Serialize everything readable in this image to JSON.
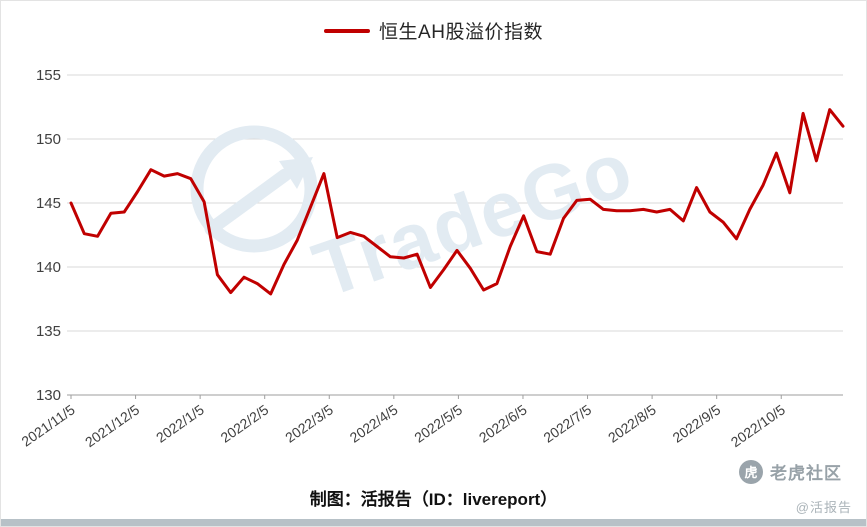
{
  "legend": {
    "label": "恒生AH股溢价指数",
    "color": "#c00000"
  },
  "caption": "制图：活报告（ID：livereport）",
  "watermark": {
    "text": "TradeGo"
  },
  "footer_badge": {
    "icon_char": "虎",
    "community": "老虎社区",
    "handle": "@活报告"
  },
  "chart_data": {
    "type": "line",
    "title": "恒生AH股溢价指数",
    "xlabel": "",
    "ylabel": "",
    "ylim": [
      130,
      155
    ],
    "y_ticks": [
      130,
      135,
      140,
      145,
      150,
      155
    ],
    "grid": "horizontal",
    "legend_position": "top-center",
    "x_tick_labels": [
      "2021/11/5",
      "2021/12/5",
      "2022/1/5",
      "2022/2/5",
      "2022/3/5",
      "2022/4/5",
      "2022/5/5",
      "2022/6/5",
      "2022/7/5",
      "2022/8/5",
      "2022/9/5",
      "2022/10/5"
    ],
    "x_tick_span_fraction": 0.92,
    "series": [
      {
        "name": "恒生AH股溢价指数",
        "color": "#c00000",
        "values": [
          145.0,
          142.6,
          142.4,
          144.2,
          144.3,
          145.9,
          147.6,
          147.1,
          147.3,
          146.9,
          145.1,
          139.4,
          138.0,
          139.2,
          138.7,
          137.9,
          140.2,
          142.1,
          144.7,
          147.3,
          142.3,
          142.7,
          142.4,
          141.6,
          140.8,
          140.7,
          141.0,
          138.4,
          139.8,
          141.3,
          139.9,
          138.2,
          138.7,
          141.6,
          144.0,
          141.2,
          141.0,
          143.8,
          145.2,
          145.3,
          144.5,
          144.4,
          144.4,
          144.5,
          144.3,
          144.5,
          143.6,
          146.2,
          144.3,
          143.5,
          142.2,
          144.5,
          146.4,
          148.9,
          145.8,
          152.0,
          148.3,
          152.3,
          151.0
        ]
      }
    ]
  }
}
